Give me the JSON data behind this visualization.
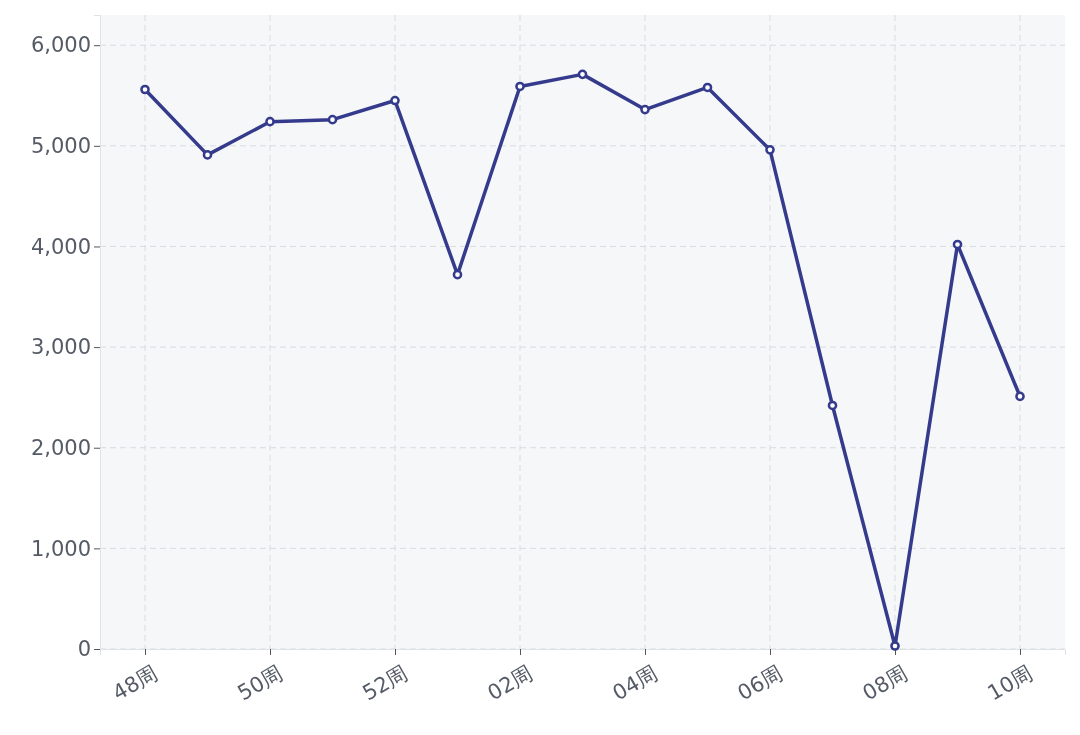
{
  "chart_data": {
    "type": "line",
    "categories": [
      "48周",
      null,
      "50周",
      null,
      "52周",
      null,
      "02周",
      null,
      "04周",
      null,
      "06周",
      null,
      "08周",
      null,
      "10周"
    ],
    "series": [
      {
        "color": "#353b8c",
        "values": [
          5560,
          4910,
          5240,
          5260,
          5450,
          3720,
          5590,
          5710,
          5360,
          5580,
          4960,
          2420,
          30,
          4020,
          2510
        ]
      }
    ],
    "ylim": [
      0,
      6300
    ],
    "yticks": [
      {
        "value": 0,
        "label": "0"
      },
      {
        "value": 1000,
        "label": "1,000"
      },
      {
        "value": 2000,
        "label": "2,000"
      },
      {
        "value": 3000,
        "label": "3,000"
      },
      {
        "value": 4000,
        "label": "4,000"
      },
      {
        "value": 5000,
        "label": "5,000"
      },
      {
        "value": 6000,
        "label": "6,000"
      }
    ],
    "grid": true,
    "marker": "circle",
    "line_style": "solid"
  }
}
